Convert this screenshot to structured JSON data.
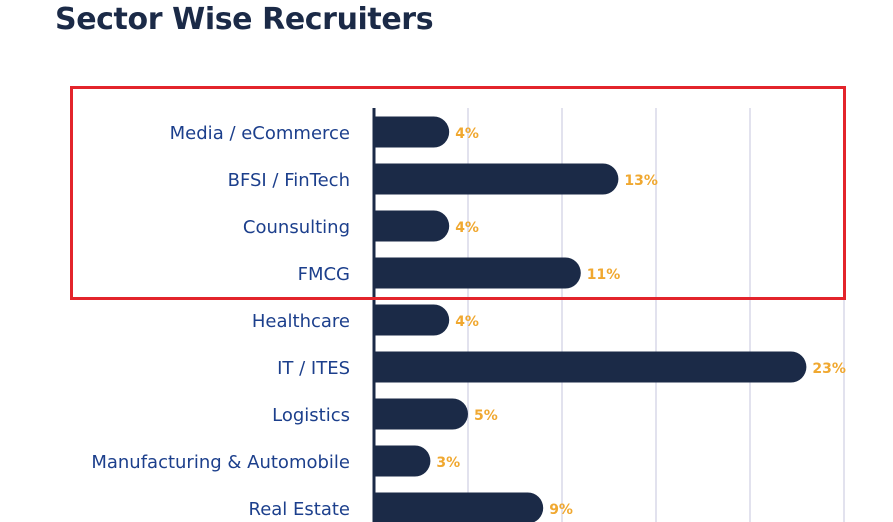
{
  "title": "Sector Wise Recruiters",
  "highlight_color": "#e3242b",
  "chart_data": {
    "type": "bar",
    "orientation": "horizontal",
    "title": "Sector Wise Recruiters",
    "categories": [
      "Media / eCommerce",
      "BFSI / FinTech",
      "Counsulting",
      "FMCG",
      "Healthcare",
      "IT / ITES",
      "Logistics",
      "Manufacturing & Automobile",
      "Real Estate"
    ],
    "values": [
      4,
      13,
      4,
      11,
      4,
      23,
      5,
      3,
      9
    ],
    "value_labels": [
      "4%",
      "13%",
      "4%",
      "11%",
      "4%",
      "23%",
      "5%",
      "3%",
      "9%"
    ],
    "xlim": [
      0,
      25
    ],
    "gridlines": [
      5,
      10,
      15,
      20,
      25
    ],
    "highlighted_categories": [
      "Media / eCommerce",
      "BFSI / FinTech",
      "Counsulting",
      "FMCG"
    ],
    "bar_color": "#1b2a47",
    "label_color": "#1c3f8c",
    "value_color": "#f0a830",
    "grid_color": "#d8d8e8"
  }
}
